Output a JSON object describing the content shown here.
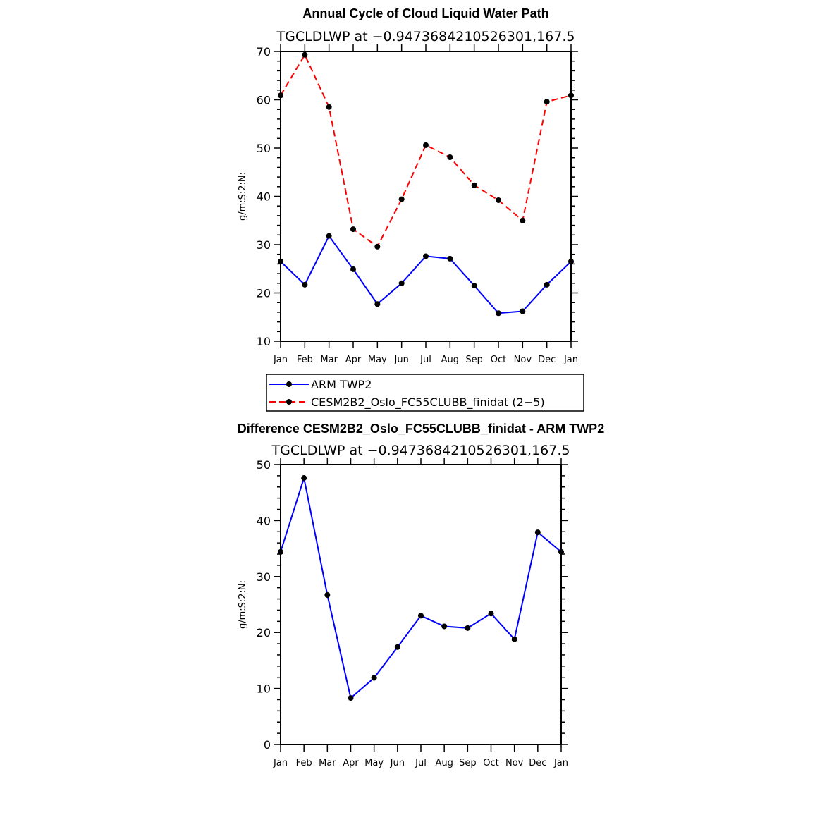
{
  "chart_data": [
    {
      "type": "line",
      "title": "Annual Cycle of Cloud Liquid Water Path",
      "subtitle": "TGCLDLWP  at  −0.9473684210526301,167.5",
      "ylabel": "g/m:S:2:N:",
      "ylim": [
        10,
        70
      ],
      "yticks": [
        10,
        20,
        30,
        40,
        50,
        60,
        70
      ],
      "categories": [
        "Jan",
        "Feb",
        "Mar",
        "Apr",
        "May",
        "Jun",
        "Jul",
        "Aug",
        "Sep",
        "Oct",
        "Nov",
        "Dec",
        "Jan"
      ],
      "series": [
        {
          "name": "ARM TWP2",
          "color": "#0000ff",
          "dash": "solid",
          "values": [
            26.5,
            21.7,
            31.8,
            24.9,
            17.7,
            22.0,
            27.6,
            27.1,
            21.5,
            15.8,
            16.2,
            21.7,
            26.5
          ]
        },
        {
          "name": "CESM2B2_Oslo_FC55CLUBB_finidat (2−5)",
          "color": "#ff0000",
          "dash": "dashed",
          "values": [
            60.9,
            69.3,
            58.5,
            33.2,
            29.6,
            39.4,
            50.6,
            48.1,
            42.3,
            39.2,
            35.0,
            59.6,
            60.9
          ]
        }
      ],
      "legend": "below"
    },
    {
      "type": "line",
      "title": "Difference CESM2B2_Oslo_FC55CLUBB_finidat - ARM TWP2",
      "subtitle": "TGCLDLWP  at  −0.9473684210526301,167.5",
      "ylabel": "g/m:S:2:N:",
      "ylim": [
        0,
        50
      ],
      "yticks": [
        0,
        10,
        20,
        30,
        40,
        50
      ],
      "categories": [
        "Jan",
        "Feb",
        "Mar",
        "Apr",
        "May",
        "Jun",
        "Jul",
        "Aug",
        "Sep",
        "Oct",
        "Nov",
        "Dec",
        "Jan"
      ],
      "series": [
        {
          "color": "#0000ff",
          "dash": "solid",
          "values": [
            34.4,
            47.6,
            26.7,
            8.3,
            11.9,
            17.4,
            23.0,
            21.1,
            20.8,
            23.4,
            18.8,
            37.9,
            34.4
          ]
        }
      ]
    }
  ]
}
